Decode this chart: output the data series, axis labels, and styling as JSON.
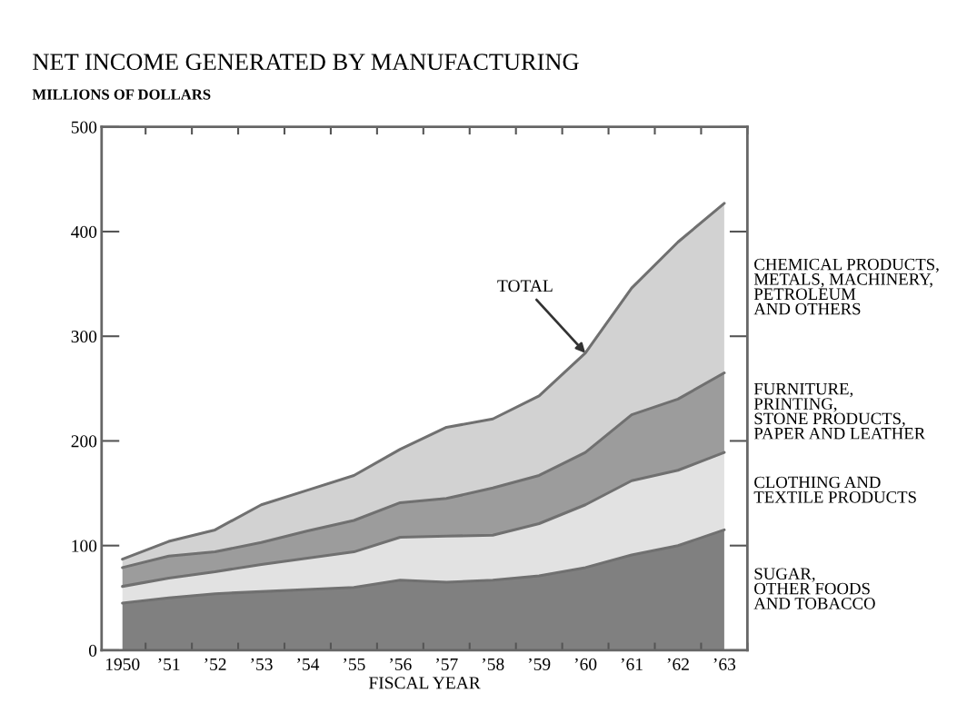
{
  "chart_data": {
    "type": "area",
    "stacked": true,
    "title": "NET INCOME GENERATED BY MANUFACTURING",
    "ylabel": "MILLIONS OF DOLLARS",
    "xlabel": "FISCAL YEAR",
    "categories": [
      "1950",
      "’51",
      "’52",
      "’53",
      "’54",
      "’55",
      "’56",
      "’57",
      "’58",
      "’59",
      "’60",
      "’61",
      "’62",
      "’63"
    ],
    "series": [
      {
        "name": "SUGAR,\nOTHER FOODS\nAND TOBACCO",
        "color": "#808080",
        "values": [
          45,
          50,
          54,
          56,
          58,
          60,
          67,
          65,
          67,
          71,
          79,
          91,
          100,
          115
        ]
      },
      {
        "name": "CLOTHING AND\nTEXTILE PRODUCTS",
        "color": "#e2e2e2",
        "values": [
          16,
          19,
          21,
          26,
          30,
          34,
          41,
          44,
          43,
          50,
          60,
          71,
          72,
          74
        ]
      },
      {
        "name": "FURNITURE,\nPRINTING,\nSTONE PRODUCTS,\nPAPER AND LEATHER",
        "color": "#9c9c9c",
        "values": [
          18,
          21,
          19,
          21,
          26,
          30,
          33,
          36,
          45,
          46,
          50,
          63,
          68,
          76
        ]
      },
      {
        "name": "CHEMICAL PRODUCTS,\nMETALS, MACHINERY,\nPETROLEUM\nAND OTHERS",
        "color": "#d2d2d2",
        "values": [
          8,
          14,
          21,
          36,
          39,
          43,
          51,
          68,
          66,
          76,
          95,
          121,
          150,
          162
        ]
      }
    ],
    "ylim": [
      0,
      500
    ],
    "yticks": [
      0,
      100,
      200,
      300,
      400,
      500
    ],
    "grid": false,
    "annotations": [
      {
        "text": "TOTAL",
        "x": "’60",
        "y": 284
      }
    ]
  }
}
